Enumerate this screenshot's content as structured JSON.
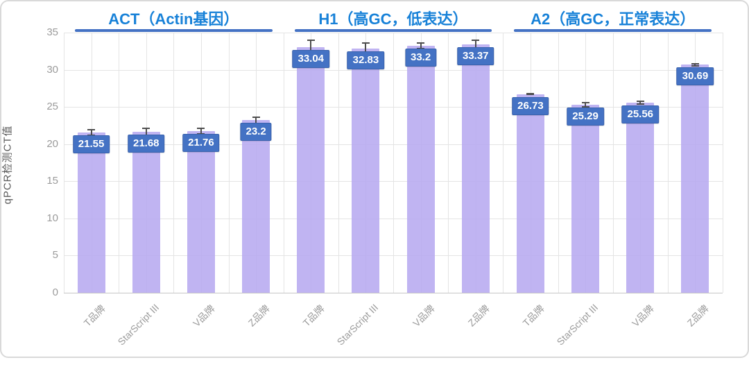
{
  "chart_data": {
    "type": "bar",
    "title": "",
    "xlabel": "",
    "ylabel": "qPCR检测CT值",
    "ylim": [
      0,
      35
    ],
    "ytick_step": 5,
    "grid": true,
    "legend_position": "none",
    "categories": [
      "T品牌",
      "StarScript III",
      "V品牌",
      "Z品牌"
    ],
    "groups": [
      {
        "name": "ACT（Actin基因）",
        "values": [
          21.55,
          21.68,
          21.76,
          23.2
        ],
        "errors": [
          0.5,
          0.55,
          0.5,
          0.55
        ]
      },
      {
        "name": "H1（高GC，低表达）",
        "values": [
          33.04,
          32.83,
          33.2,
          33.37
        ],
        "errors": [
          1.0,
          0.9,
          0.45,
          0.7
        ]
      },
      {
        "name": "A2（高GC，正常表达）",
        "values": [
          26.73,
          25.29,
          25.56,
          30.69
        ],
        "errors": [
          0.15,
          0.35,
          0.25,
          0.25
        ]
      }
    ],
    "colors": {
      "bar_fill": "#b7aaf0",
      "data_label_box": "#4472c4",
      "data_label_text": "#ffffff",
      "error_bar": "#4d4d4d",
      "group_header_text": "#1781d8",
      "group_underline": "#4472c4",
      "axis_tick_text": "#9b9b9b",
      "y_axis_title_text": "#595959",
      "gridline": "#e4e4e4"
    }
  }
}
